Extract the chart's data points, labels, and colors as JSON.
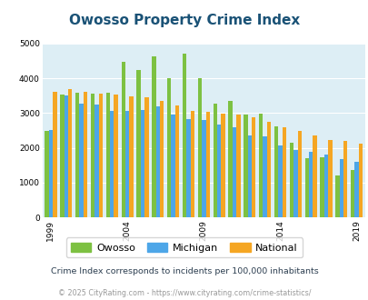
{
  "title": "Owosso Property Crime Index",
  "years": [
    1999,
    2000,
    2001,
    2002,
    2003,
    2004,
    2005,
    2006,
    2007,
    2008,
    2009,
    2010,
    2011,
    2012,
    2013,
    2014,
    2015,
    2016,
    2017,
    2018,
    2019,
    2020
  ],
  "owosso": [
    2480,
    3530,
    3580,
    3560,
    3590,
    4480,
    4250,
    4620,
    4010,
    4720,
    4010,
    3260,
    3350,
    2970,
    2990,
    2620,
    2160,
    1700,
    1720,
    1200,
    1370,
    null
  ],
  "michigan": [
    2510,
    3520,
    3280,
    3250,
    3050,
    3060,
    3100,
    3200,
    2950,
    2840,
    2800,
    2680,
    2580,
    2360,
    2340,
    2060,
    1930,
    1880,
    1810,
    1670,
    1590,
    null
  ],
  "national": [
    3600,
    3680,
    3620,
    3560,
    3530,
    3490,
    3460,
    3340,
    3210,
    3050,
    3040,
    2990,
    2960,
    2870,
    2740,
    2600,
    2490,
    2360,
    2240,
    2190,
    2110,
    null
  ],
  "owosso_color": "#7dc142",
  "michigan_color": "#4da6e8",
  "national_color": "#f5a623",
  "plot_bg": "#ddeef5",
  "ylim": [
    0,
    5000
  ],
  "yticks": [
    0,
    1000,
    2000,
    3000,
    4000,
    5000
  ],
  "subtitle": "Crime Index corresponds to incidents per 100,000 inhabitants",
  "footer": "© 2025 CityRating.com - https://www.cityrating.com/crime-statistics/",
  "xlabel_ticks": [
    1999,
    2004,
    2009,
    2014,
    2019
  ],
  "title_color": "#1a5276",
  "subtitle_color": "#2c3e50",
  "footer_color": "#999999"
}
